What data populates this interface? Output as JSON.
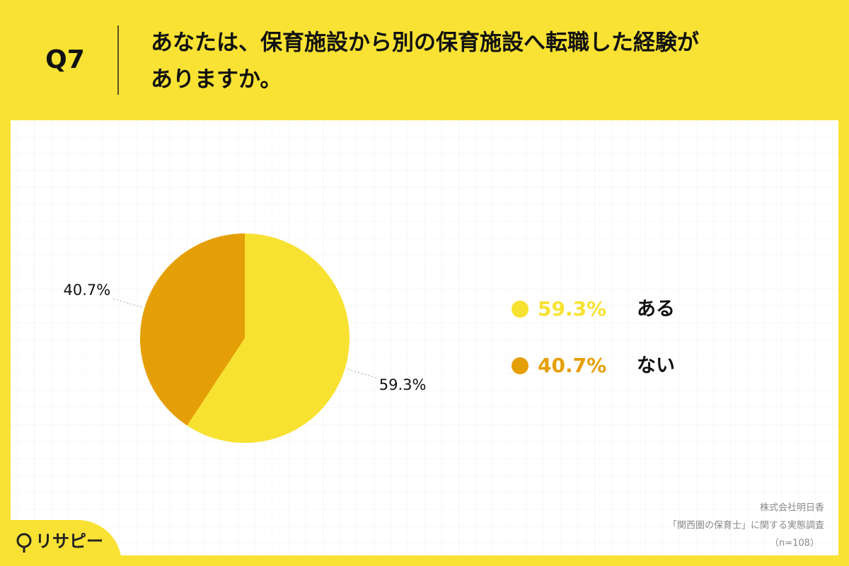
{
  "chart_data": {
    "type": "pie",
    "question_number": "Q7",
    "title": [
      "あなたは、保育施設から別の保育施設へ転職した経験が",
      "ありますか。"
    ],
    "categories": [
      "ある",
      "ない"
    ],
    "values": [
      59.3,
      40.7
    ],
    "value_labels": [
      "59.3%",
      "40.7%"
    ],
    "colors": [
      "#f8e231",
      "#e59f06"
    ],
    "source": [
      "株式会社明日香",
      "「関西圏の保育士」に関する実態調査",
      "（n=108）"
    ],
    "brand": "リサピー"
  }
}
